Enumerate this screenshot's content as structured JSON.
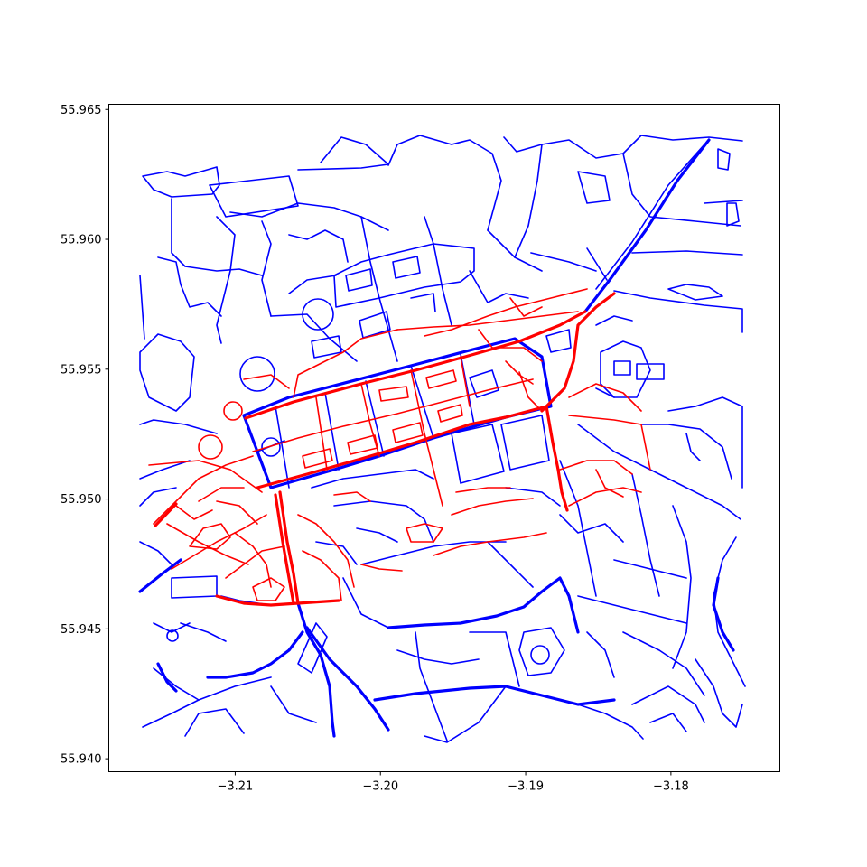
{
  "chart_data": {
    "type": "map",
    "title": "",
    "xlabel": "",
    "ylabel": "",
    "xlim": [
      -3.2187,
      -3.1725
    ],
    "ylim": [
      55.9395,
      55.9652
    ],
    "xticks": [
      {
        "value": -3.21,
        "label": "−3.21"
      },
      {
        "value": -3.2,
        "label": "−3.20"
      },
      {
        "value": -3.19,
        "label": "−3.19"
      },
      {
        "value": -3.18,
        "label": "−3.18"
      }
    ],
    "yticks": [
      {
        "value": 55.94,
        "label": "55.940"
      },
      {
        "value": 55.945,
        "label": "55.945"
      },
      {
        "value": 55.95,
        "label": "55.950"
      },
      {
        "value": 55.955,
        "label": "55.955"
      },
      {
        "value": 55.96,
        "label": "55.960"
      },
      {
        "value": 55.965,
        "label": "55.965"
      }
    ],
    "grid": false,
    "legend": "none",
    "series": [
      {
        "color": "#0000ff"
      },
      {
        "color": "#ff0000"
      }
    ]
  }
}
